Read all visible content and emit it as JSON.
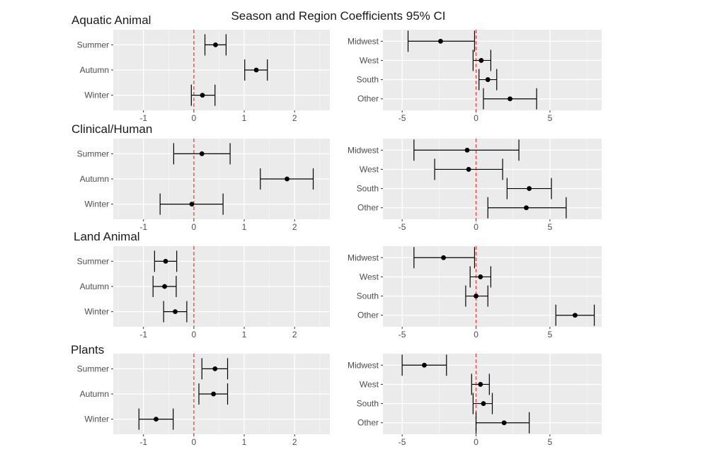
{
  "figure_title": "Season and Region Coefficients 95% CI",
  "colors": {
    "panel_bg": "#ebebeb",
    "grid": "#ffffff",
    "point": "#000000",
    "error_bar": "#000000",
    "reference_line": "#e3423a",
    "tick_text": "#4d4d4d",
    "title_text": "#1a1a1a"
  },
  "chart_data": [
    {
      "type": "scatter",
      "panel": "Aquatic Animal season",
      "group_label": "Aquatic Animal",
      "categories": [
        "Summer",
        "Autumn",
        "Winter"
      ],
      "estimate": [
        0.43,
        1.24,
        0.17
      ],
      "ci_low": [
        0.22,
        1.01,
        -0.05
      ],
      "ci_high": [
        0.64,
        1.46,
        0.42
      ],
      "xlim": [
        -1.6,
        2.7
      ],
      "xticks": [
        -1,
        0,
        1,
        2
      ],
      "reference_line": 0,
      "grid": true
    },
    {
      "type": "scatter",
      "panel": "Aquatic Animal region",
      "categories": [
        "Midwest",
        "West",
        "South",
        "Other"
      ],
      "estimate": [
        -2.4,
        0.35,
        0.8,
        2.3
      ],
      "ci_low": [
        -4.6,
        -0.2,
        0.2,
        0.5
      ],
      "ci_high": [
        -0.1,
        1.0,
        1.4,
        4.1
      ],
      "xlim": [
        -6.3,
        8.5
      ],
      "xticks": [
        -5,
        0,
        5
      ],
      "reference_line": 0,
      "grid": true
    },
    {
      "type": "scatter",
      "panel": "Clinical/Human season",
      "group_label": "Clinical/Human",
      "categories": [
        "Summer",
        "Autumn",
        "Winter"
      ],
      "estimate": [
        0.16,
        1.85,
        -0.04
      ],
      "ci_low": [
        -0.4,
        1.32,
        -0.67
      ],
      "ci_high": [
        0.72,
        2.37,
        0.58
      ],
      "xlim": [
        -1.6,
        2.7
      ],
      "xticks": [
        -1,
        0,
        1,
        2
      ],
      "reference_line": 0,
      "grid": true
    },
    {
      "type": "scatter",
      "panel": "Clinical/Human region",
      "categories": [
        "Midwest",
        "West",
        "South",
        "Other"
      ],
      "estimate": [
        -0.6,
        -0.5,
        3.6,
        3.4
      ],
      "ci_low": [
        -4.2,
        -2.8,
        2.1,
        0.8
      ],
      "ci_high": [
        2.9,
        1.8,
        5.1,
        6.1
      ],
      "xlim": [
        -6.3,
        8.5
      ],
      "xticks": [
        -5,
        0,
        5
      ],
      "reference_line": 0,
      "grid": true
    },
    {
      "type": "scatter",
      "panel": "Land Animal season",
      "group_label": "Land Animal",
      "categories": [
        "Summer",
        "Autumn",
        "Winter"
      ],
      "estimate": [
        -0.56,
        -0.58,
        -0.37
      ],
      "ci_low": [
        -0.78,
        -0.81,
        -0.6
      ],
      "ci_high": [
        -0.34,
        -0.35,
        -0.14
      ],
      "xlim": [
        -1.6,
        2.7
      ],
      "xticks": [
        -1,
        0,
        1,
        2
      ],
      "reference_line": 0,
      "grid": true
    },
    {
      "type": "scatter",
      "panel": "Land Animal region",
      "categories": [
        "Midwest",
        "West",
        "South",
        "Other"
      ],
      "estimate": [
        -2.2,
        0.3,
        0.0,
        6.7
      ],
      "ci_low": [
        -4.2,
        -0.4,
        -0.7,
        5.4
      ],
      "ci_high": [
        -0.1,
        1.0,
        0.8,
        8.0
      ],
      "xlim": [
        -6.3,
        8.5
      ],
      "xticks": [
        -5,
        0,
        5
      ],
      "reference_line": 0,
      "grid": true
    },
    {
      "type": "scatter",
      "panel": "Plants season",
      "group_label": "Plants",
      "categories": [
        "Summer",
        "Autumn",
        "Winter"
      ],
      "estimate": [
        0.42,
        0.39,
        -0.75
      ],
      "ci_low": [
        0.16,
        0.1,
        -1.09
      ],
      "ci_high": [
        0.67,
        0.67,
        -0.41
      ],
      "xlim": [
        -1.6,
        2.7
      ],
      "xticks": [
        -1,
        0,
        1,
        2
      ],
      "reference_line": 0,
      "grid": true
    },
    {
      "type": "scatter",
      "panel": "Plants region",
      "categories": [
        "Midwest",
        "West",
        "South",
        "Other"
      ],
      "estimate": [
        -3.5,
        0.3,
        0.5,
        1.9
      ],
      "ci_low": [
        -5.0,
        -0.3,
        -0.2,
        0.0
      ],
      "ci_high": [
        -2.0,
        0.9,
        1.1,
        3.6
      ],
      "xlim": [
        -6.3,
        8.5
      ],
      "xticks": [
        -5,
        0,
        5
      ],
      "reference_line": 0,
      "grid": true
    }
  ]
}
